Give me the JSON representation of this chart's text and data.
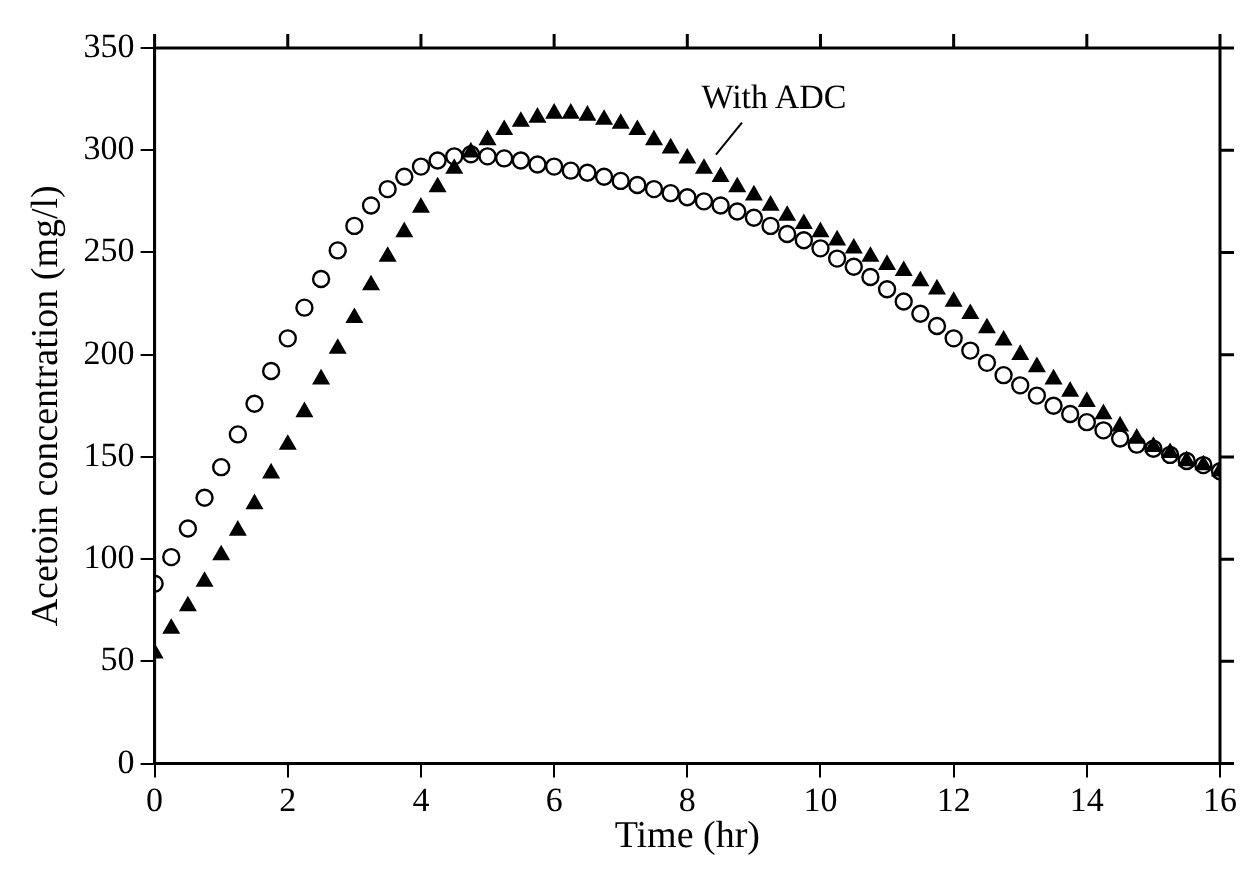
{
  "chart_data": {
    "type": "scatter",
    "xlabel": "Time (hr)",
    "ylabel": "Acetoin concentration (mg/l)",
    "xlim": [
      0,
      16
    ],
    "xticks": [
      0,
      2,
      4,
      6,
      8,
      10,
      12,
      14,
      16
    ],
    "ylim": [
      0,
      350
    ],
    "yticks": [
      0,
      50,
      100,
      150,
      200,
      250,
      300,
      350
    ],
    "grid": false,
    "legend": false,
    "x": [
      0,
      0.25,
      0.5,
      0.75,
      1,
      1.25,
      1.5,
      1.75,
      2,
      2.25,
      2.5,
      2.75,
      3,
      3.25,
      3.5,
      3.75,
      4,
      4.25,
      4.5,
      4.75,
      5,
      5.25,
      5.5,
      5.75,
      6,
      6.25,
      6.5,
      6.75,
      7,
      7.25,
      7.5,
      7.75,
      8,
      8.25,
      8.5,
      8.75,
      9,
      9.25,
      9.5,
      9.75,
      10,
      10.25,
      10.5,
      10.75,
      11,
      11.25,
      11.5,
      11.75,
      12,
      12.25,
      12.5,
      12.75,
      13,
      13.25,
      13.5,
      13.75,
      14,
      14.25,
      14.5,
      14.75,
      15,
      15.25,
      15.5,
      15.75,
      16
    ],
    "series": [
      {
        "color": "#000000",
        "marker": "circle",
        "values": [
          88,
          101,
          115,
          130,
          145,
          161,
          176,
          192,
          208,
          223,
          237,
          251,
          263,
          273,
          281,
          287,
          292,
          295,
          297,
          298,
          297,
          296,
          295,
          293,
          292,
          290,
          289,
          287,
          285,
          283,
          281,
          279,
          277,
          275,
          273,
          270,
          267,
          263,
          259,
          256,
          252,
          247,
          243,
          238,
          232,
          226,
          220,
          214,
          208,
          202,
          196,
          190,
          185,
          180,
          175,
          171,
          167,
          163,
          159,
          156,
          154,
          151,
          148,
          146,
          143
        ]
      },
      {
        "color": "#000000",
        "marker": "triangle",
        "values": [
          54,
          66,
          77,
          89,
          102,
          114,
          127,
          142,
          156,
          172,
          188,
          203,
          218,
          234,
          248,
          260,
          272,
          282,
          291,
          299,
          305,
          310,
          314,
          316,
          318,
          318,
          317,
          315,
          313,
          310,
          305,
          301,
          296,
          291,
          287,
          282,
          278,
          273,
          268,
          264,
          260,
          256,
          252,
          248,
          244,
          241,
          236,
          232,
          226,
          220,
          213,
          207,
          200,
          194,
          188,
          182,
          177,
          171,
          165,
          159,
          155,
          152,
          148,
          146,
          143
        ]
      }
    ],
    "annotations": [
      {
        "text": "With ADC",
        "x": 8.4,
        "y": 292
      }
    ]
  }
}
